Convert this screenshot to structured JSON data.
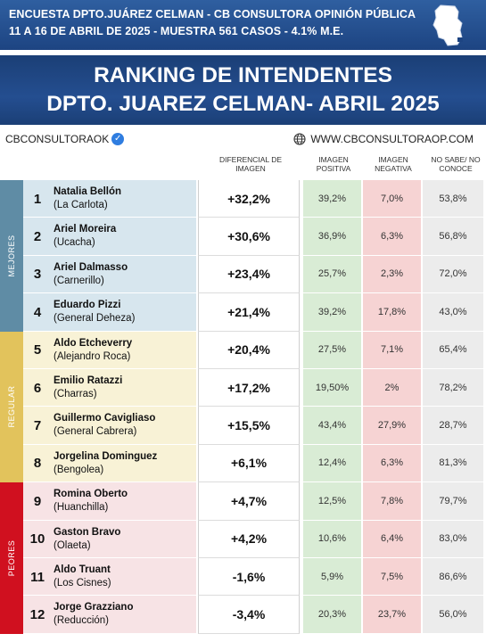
{
  "header": {
    "line1": "ENCUESTA DPTO.JUÁREZ CELMAN - CB CONSULTORA OPINIÓN PÚBLICA",
    "line2": "11 A 16 DE ABRIL  DE 2025 - MUESTRA 561 CASOS - 4.1% M.E."
  },
  "title": {
    "line1": "RANKING DE INTENDENTES",
    "line2": "DPTO. JUAREZ CELMAN- ABRIL 2025"
  },
  "brand": {
    "handle": "CBCONSULTORAOK",
    "website": "WWW.CBCONSULTORAOP.COM"
  },
  "colors": {
    "mejores": "#5f8ca5",
    "regular": "#e2c35c",
    "peores": "#d0101f",
    "header_blue": "#1d4482"
  },
  "chart_data": {
    "type": "table",
    "columns": [
      "DIFERENCIAL DE IMAGEN",
      "IMAGEN POSITIVA",
      "IMAGEN NEGATIVA",
      "NO SABE/ NO CONOCE"
    ],
    "groups": [
      {
        "label": "MEJORES",
        "rows": [
          1,
          2,
          3,
          4
        ]
      },
      {
        "label": "REGULAR",
        "rows": [
          5,
          6,
          7,
          8
        ]
      },
      {
        "label": "PEORES",
        "rows": [
          9,
          10,
          11,
          12
        ]
      }
    ],
    "rows": [
      {
        "rank": "1",
        "name": "Natalia Bellón",
        "town": "(La Carlota)",
        "diferencial": "+32,2%",
        "positiva": "39,2%",
        "negativa": "7,0%",
        "no_sabe": "53,8%"
      },
      {
        "rank": "2",
        "name": "Ariel Moreira",
        "town": "(Ucacha)",
        "diferencial": "+30,6%",
        "positiva": "36,9%",
        "negativa": "6,3%",
        "no_sabe": "56,8%"
      },
      {
        "rank": "3",
        "name": "Ariel Dalmasso",
        "town": "(Carnerillo)",
        "diferencial": "+23,4%",
        "positiva": "25,7%",
        "negativa": "2,3%",
        "no_sabe": "72,0%"
      },
      {
        "rank": "4",
        "name": "Eduardo Pizzi",
        "town": "(General Deheza)",
        "diferencial": "+21,4%",
        "positiva": "39,2%",
        "negativa": "17,8%",
        "no_sabe": "43,0%"
      },
      {
        "rank": "5",
        "name": "Aldo Etcheverry",
        "town": "(Alejandro Roca)",
        "diferencial": "+20,4%",
        "positiva": "27,5%",
        "negativa": "7,1%",
        "no_sabe": "65,4%"
      },
      {
        "rank": "6",
        "name": "Emilio Ratazzi",
        "town": "(Charras)",
        "diferencial": "+17,2%",
        "positiva": "19,50%",
        "negativa": "2%",
        "no_sabe": "78,2%"
      },
      {
        "rank": "7",
        "name": "Guillermo Cavigliaso",
        "town": "(General Cabrera)",
        "diferencial": "+15,5%",
        "positiva": "43,4%",
        "negativa": "27,9%",
        "no_sabe": "28,7%"
      },
      {
        "rank": "8",
        "name": "Jorgelina Dominguez",
        "town": "(Bengolea)",
        "diferencial": "+6,1%",
        "positiva": "12,4%",
        "negativa": "6,3%",
        "no_sabe": "81,3%"
      },
      {
        "rank": "9",
        "name": "Romina Oberto",
        "town": "(Huanchilla)",
        "diferencial": "+4,7%",
        "positiva": "12,5%",
        "negativa": "7,8%",
        "no_sabe": "79,7%"
      },
      {
        "rank": "10",
        "name": "Gaston Bravo",
        "town": "(Olaeta)",
        "diferencial": "+4,2%",
        "positiva": "10,6%",
        "negativa": "6,4%",
        "no_sabe": "83,0%"
      },
      {
        "rank": "11",
        "name": "Aldo Truant",
        "town": "(Los Cisnes)",
        "diferencial": "-1,6%",
        "positiva": "5,9%",
        "negativa": "7,5%",
        "no_sabe": "86,6%"
      },
      {
        "rank": "12",
        "name": "Jorge Grazziano",
        "town": "(Reducción)",
        "diferencial": "-3,4%",
        "positiva": "20,3%",
        "negativa": "23,7%",
        "no_sabe": "56,0%"
      }
    ]
  }
}
